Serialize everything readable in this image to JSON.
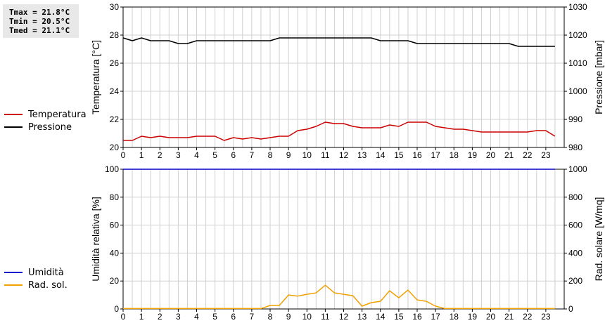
{
  "stats": {
    "tmax": "Tmax = 21.8°C",
    "tmin": "Tmin = 20.5°C",
    "tmed": "Tmed = 21.1°C"
  },
  "colors": {
    "temperature": "#cc0000",
    "pressure": "#000000",
    "humidity": "#0000cc",
    "radiation": "#f0a000",
    "grid": "#d0d0d0"
  },
  "chart_data": [
    {
      "type": "line",
      "x_ticks": [
        "0",
        "1",
        "2",
        "3",
        "4",
        "5",
        "6",
        "7",
        "8",
        "9",
        "10",
        "11",
        "12",
        "13",
        "14",
        "15",
        "16",
        "17",
        "18",
        "19",
        "20",
        "21",
        "22",
        "23"
      ],
      "xlim": [
        0,
        24
      ],
      "ylabel": "Temperatura [°C]",
      "ylim": [
        20,
        30
      ],
      "y_ticks": [
        "20",
        "22",
        "24",
        "26",
        "28",
        "30"
      ],
      "y2label": "Pressione [mbar]",
      "y2lim": [
        980,
        1030
      ],
      "y2_ticks": [
        "980",
        "990",
        "1000",
        "1010",
        "1020",
        "1030"
      ],
      "legend": [
        "Temperatura",
        "Pressione"
      ],
      "series": [
        {
          "name": "Temperatura",
          "axis": "left",
          "x": [
            0,
            0.5,
            1,
            1.5,
            2,
            2.5,
            3,
            3.5,
            4,
            4.5,
            5,
            5.5,
            6,
            6.5,
            7,
            7.5,
            8,
            8.5,
            9,
            9.5,
            10,
            10.5,
            11,
            11.5,
            12,
            12.5,
            13,
            13.5,
            14,
            14.5,
            15,
            15.5,
            16,
            16.5,
            17,
            17.5,
            18,
            18.5,
            19,
            19.5,
            20,
            20.5,
            21,
            21.5,
            22,
            22.5,
            23,
            23.5
          ],
          "values": [
            20.5,
            20.5,
            20.8,
            20.7,
            20.8,
            20.7,
            20.7,
            20.7,
            20.8,
            20.8,
            20.8,
            20.5,
            20.7,
            20.6,
            20.7,
            20.6,
            20.7,
            20.8,
            20.8,
            21.2,
            21.3,
            21.5,
            21.8,
            21.7,
            21.7,
            21.5,
            21.4,
            21.4,
            21.4,
            21.6,
            21.5,
            21.8,
            21.8,
            21.8,
            21.5,
            21.4,
            21.3,
            21.3,
            21.2,
            21.1,
            21.1,
            21.1,
            21.1,
            21.1,
            21.1,
            21.2,
            21.2,
            20.8
          ]
        },
        {
          "name": "Pressione",
          "axis": "right",
          "x": [
            0,
            0.5,
            1,
            1.5,
            2,
            2.5,
            3,
            3.5,
            4,
            4.5,
            5,
            5.5,
            6,
            6.5,
            7,
            7.5,
            8,
            8.5,
            9,
            9.5,
            10,
            10.5,
            11,
            11.5,
            12,
            12.5,
            13,
            13.5,
            14,
            14.5,
            15,
            15.5,
            16,
            16.5,
            17,
            17.5,
            18,
            18.5,
            19,
            19.5,
            20,
            20.5,
            21,
            21.5,
            22,
            22.5,
            23,
            23.5
          ],
          "values": [
            1019,
            1018,
            1019,
            1018,
            1018,
            1018,
            1017,
            1017,
            1018,
            1018,
            1018,
            1018,
            1018,
            1018,
            1018,
            1018,
            1018,
            1019,
            1019,
            1019,
            1019,
            1019,
            1019,
            1019,
            1019,
            1019,
            1019,
            1019,
            1018,
            1018,
            1018,
            1018,
            1017,
            1017,
            1017,
            1017,
            1017,
            1017,
            1017,
            1017,
            1017,
            1017,
            1017,
            1016,
            1016,
            1016,
            1016,
            1016
          ]
        }
      ]
    },
    {
      "type": "line",
      "x_ticks": [
        "0",
        "1",
        "2",
        "3",
        "4",
        "5",
        "6",
        "7",
        "8",
        "9",
        "10",
        "11",
        "12",
        "13",
        "14",
        "15",
        "16",
        "17",
        "18",
        "19",
        "20",
        "21",
        "22",
        "23"
      ],
      "xlim": [
        0,
        24
      ],
      "ylabel": "Umidità relativa [%]",
      "ylim": [
        0,
        100
      ],
      "y_ticks": [
        "0",
        "20",
        "40",
        "60",
        "80",
        "100"
      ],
      "y2label": "Rad. solare [W/mq]",
      "y2lim": [
        0,
        1000
      ],
      "y2_ticks": [
        "0",
        "200",
        "400",
        "600",
        "800",
        "1000"
      ],
      "legend": [
        "Umidità",
        "Rad. sol."
      ],
      "series": [
        {
          "name": "Umidità",
          "axis": "left",
          "x": [
            0,
            23.5
          ],
          "values": [
            100,
            100
          ]
        },
        {
          "name": "Rad. sol.",
          "axis": "right",
          "x": [
            0,
            0.5,
            1,
            1.5,
            2,
            2.5,
            3,
            3.5,
            4,
            4.5,
            5,
            5.5,
            6,
            6.5,
            7,
            7.5,
            8,
            8.5,
            9,
            9.5,
            10,
            10.5,
            11,
            11.5,
            12,
            12.5,
            13,
            13.5,
            14,
            14.5,
            15,
            15.5,
            16,
            16.5,
            17,
            17.5,
            18,
            18.5,
            19,
            19.5,
            20,
            20.5,
            21,
            21.5,
            22,
            22.5,
            23,
            23.5
          ],
          "values": [
            3,
            3,
            3,
            3,
            3,
            3,
            3,
            3,
            3,
            3,
            3,
            3,
            3,
            3,
            3,
            3,
            25,
            25,
            100,
            92,
            105,
            115,
            170,
            115,
            105,
            95,
            20,
            45,
            55,
            130,
            80,
            135,
            65,
            55,
            20,
            3,
            3,
            3,
            3,
            3,
            3,
            3,
            3,
            3,
            3,
            3,
            3,
            3
          ]
        }
      ]
    }
  ]
}
